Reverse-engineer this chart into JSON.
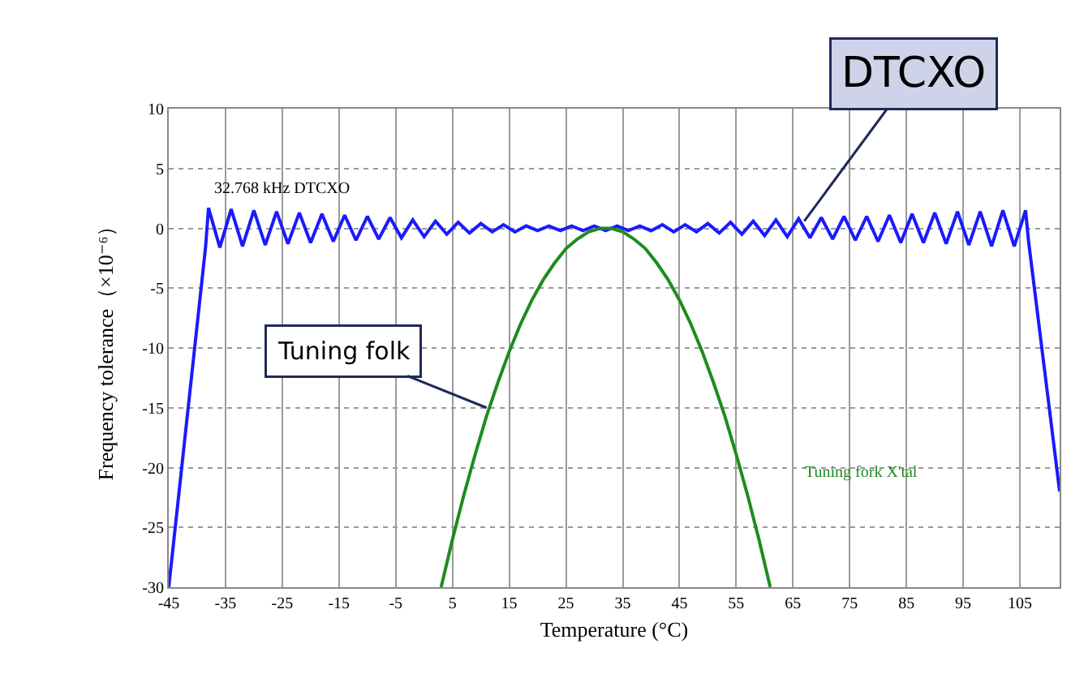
{
  "chart_data": {
    "type": "line",
    "xlabel": "Temperature (°C)",
    "ylabel": "Frequency tolerance（×10⁻⁶）",
    "xlim": [
      -45,
      112
    ],
    "xticks": [
      -45,
      -35,
      -25,
      -15,
      -5,
      5,
      15,
      25,
      35,
      45,
      55,
      65,
      75,
      85,
      95,
      105
    ],
    "ylim": [
      -30,
      10
    ],
    "yticks": [
      -30,
      -25,
      -20,
      -15,
      -10,
      -5,
      0,
      5,
      10
    ],
    "grid": true,
    "annotations": [
      {
        "text": "DTCXO",
        "x": 67,
        "y": 0.6
      },
      {
        "text": "Tuning folk",
        "x": 11,
        "y": -15
      }
    ],
    "series": [
      {
        "name": "32.768 kHz DTCXO",
        "color": "#1a1aff",
        "x": [
          -45,
          -38.5,
          -38,
          -36,
          -34,
          -32,
          -30,
          -28,
          -26,
          -24,
          -22,
          -20,
          -18,
          -16,
          -14,
          -12,
          -10,
          -8,
          -6,
          -4,
          -2,
          0,
          2,
          4,
          6,
          8,
          10,
          12,
          14,
          16,
          18,
          20,
          22,
          24,
          26,
          28,
          30,
          32,
          34,
          36,
          38,
          40,
          42,
          44,
          46,
          48,
          50,
          52,
          54,
          56,
          58,
          60,
          62,
          64,
          66,
          68,
          70,
          72,
          74,
          76,
          78,
          80,
          82,
          84,
          86,
          88,
          90,
          92,
          94,
          96,
          98,
          100,
          102,
          104,
          106,
          106.5,
          112
        ],
        "values": [
          -30,
          -1.5,
          1.7,
          -1.6,
          1.6,
          -1.5,
          1.5,
          -1.4,
          1.4,
          -1.3,
          1.3,
          -1.2,
          1.2,
          -1.1,
          1.1,
          -1.0,
          1.0,
          -0.9,
          0.9,
          -0.8,
          0.7,
          -0.7,
          0.6,
          -0.5,
          0.5,
          -0.4,
          0.4,
          -0.3,
          0.3,
          -0.3,
          0.2,
          -0.2,
          0.2,
          -0.2,
          0.2,
          -0.2,
          0.2,
          -0.2,
          0.2,
          -0.2,
          0.2,
          -0.2,
          0.3,
          -0.3,
          0.3,
          -0.3,
          0.4,
          -0.4,
          0.5,
          -0.5,
          0.6,
          -0.6,
          0.7,
          -0.7,
          0.8,
          -0.8,
          0.9,
          -0.9,
          1.0,
          -1.0,
          1.0,
          -1.1,
          1.1,
          -1.2,
          1.2,
          -1.2,
          1.3,
          -1.3,
          1.4,
          -1.4,
          1.4,
          -1.5,
          1.5,
          -1.5,
          1.5,
          -1.0,
          -22
        ]
      },
      {
        "name": "Tuning fork X'tal",
        "color": "#1e8c1e",
        "x": [
          3,
          5,
          7,
          9,
          11,
          13,
          15,
          17,
          19,
          21,
          23,
          25,
          27,
          29,
          31,
          33,
          35,
          37,
          39,
          41,
          43,
          45,
          47,
          49,
          51,
          53,
          55,
          57,
          59,
          61
        ],
        "values": [
          -30.0,
          -26.0,
          -22.3,
          -18.9,
          -15.7,
          -12.9,
          -10.3,
          -8.0,
          -6.0,
          -4.3,
          -2.9,
          -1.7,
          -0.9,
          -0.3,
          0.0,
          0.0,
          -0.3,
          -0.9,
          -1.7,
          -2.9,
          -4.3,
          -6.0,
          -8.0,
          -10.3,
          -12.9,
          -15.7,
          -18.9,
          -22.3,
          -26.0,
          -30.0
        ]
      }
    ]
  }
}
